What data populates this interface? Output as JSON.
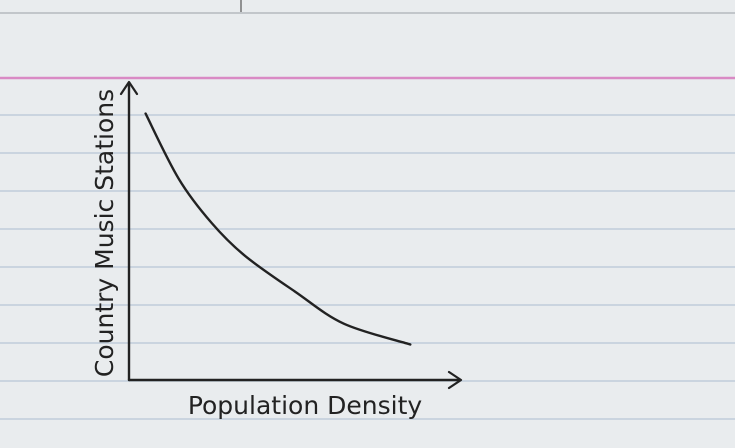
{
  "colors": {
    "paper": "#e9ecee",
    "rule_line": "#b7c6d6",
    "margin_line": "#d98ac4",
    "ink": "#222222"
  },
  "chart_data": {
    "type": "line",
    "title": "",
    "xlabel": "Population Density",
    "ylabel": "Country Music Stations",
    "xlim": [
      0,
      10
    ],
    "ylim": [
      0,
      10
    ],
    "grid": false,
    "legend": "none",
    "series": [
      {
        "x": [
          0.5,
          1.5,
          2.5,
          3.5,
          5.0,
          6.5,
          8.5
        ],
        "y": [
          9.0,
          6.8,
          5.3,
          4.2,
          3.0,
          1.9,
          1.2
        ]
      }
    ]
  }
}
